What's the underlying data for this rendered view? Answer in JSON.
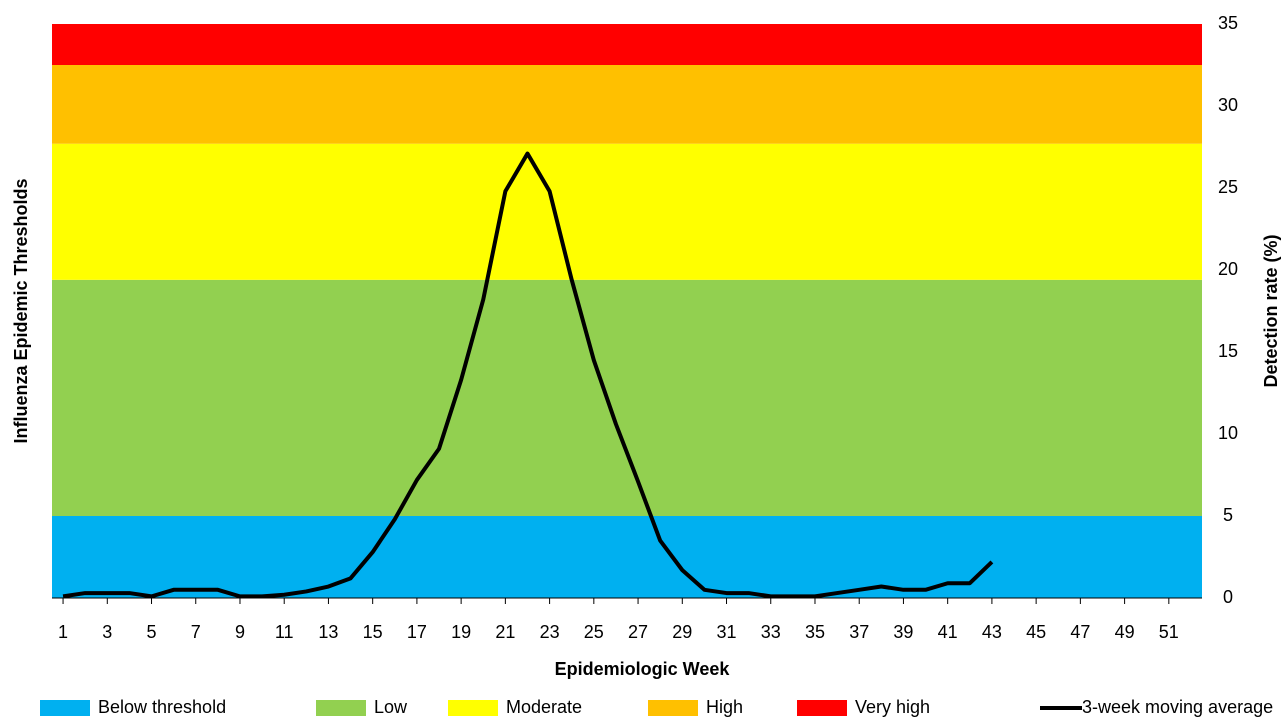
{
  "chart_data": {
    "type": "line",
    "x_label": "Epidemiologic Week",
    "y_label": "Influenza Epidemic Thresholds",
    "y2_label": "Detection rate (%)",
    "xlim": [
      0.5,
      52.5
    ],
    "xticks": [
      1,
      3,
      5,
      7,
      9,
      11,
      13,
      15,
      17,
      19,
      21,
      23,
      25,
      27,
      29,
      31,
      33,
      35,
      37,
      39,
      41,
      43,
      45,
      47,
      49,
      51
    ],
    "ylim": [
      0,
      35
    ],
    "yticks": [
      0,
      5,
      10,
      15,
      20,
      25,
      30,
      35
    ],
    "bands": [
      {
        "name": "Below threshold",
        "color": "#00b0f0",
        "from": 0,
        "to": 5
      },
      {
        "name": "Low",
        "color": "#92d050",
        "from": 5,
        "to": 19.4
      },
      {
        "name": "Moderate",
        "color": "#ffff00",
        "from": 19.4,
        "to": 27.7
      },
      {
        "name": "High",
        "color": "#ffc000",
        "from": 27.7,
        "to": 32.5
      },
      {
        "name": "Very high",
        "color": "#ff0000",
        "from": 32.5,
        "to": 35
      }
    ],
    "x": [
      1,
      2,
      3,
      4,
      5,
      6,
      7,
      8,
      9,
      10,
      11,
      12,
      13,
      14,
      15,
      16,
      17,
      18,
      19,
      20,
      21,
      22,
      23,
      24,
      25,
      26,
      27,
      28,
      29,
      30,
      31,
      32,
      33,
      34,
      35,
      36,
      37,
      38,
      39,
      40,
      41,
      42,
      43
    ],
    "series": [
      {
        "name": "3-week moving average",
        "color": "#000000",
        "values": [
          0.1,
          0.3,
          0.3,
          0.3,
          0.1,
          0.5,
          0.5,
          0.5,
          0.1,
          0.1,
          0.2,
          0.4,
          0.7,
          1.2,
          2.8,
          4.8,
          7.2,
          9.1,
          13.3,
          18.2,
          24.8,
          27.1,
          24.8,
          19.4,
          14.5,
          10.6,
          7.1,
          3.5,
          1.7,
          0.5,
          0.3,
          0.3,
          0.1,
          0.1,
          0.1,
          0.3,
          0.5,
          0.7,
          0.5,
          0.5,
          0.9,
          0.9,
          2.2
        ]
      }
    ]
  }
}
